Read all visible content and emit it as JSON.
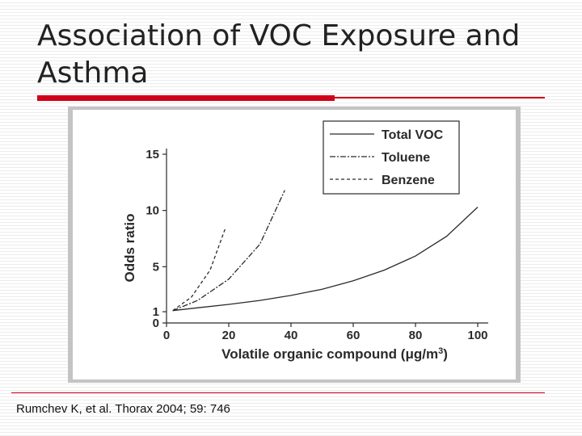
{
  "slide": {
    "title": "Association of VOC Exposure and Asthma",
    "citation": "Rumchev K, et al. Thorax 2004; 59: 746",
    "accent_color": "#d0021b"
  },
  "chart_data": {
    "type": "line",
    "xlabel": "Volatile organic compound (μg/m³)",
    "xlabel_main": "Volatile organic compound (",
    "xlabel_unit": "μg/m",
    "xlabel_sup": "3",
    "xlabel_close": ")",
    "ylabel": "Odds ratio",
    "xlim": [
      0,
      100
    ],
    "ylim": [
      0,
      15
    ],
    "x_ticks": [
      "0",
      "20",
      "40",
      "60",
      "80",
      "100"
    ],
    "y_ticks": [
      "0",
      "1",
      "5",
      "10",
      "15"
    ],
    "legend_position": "top-right",
    "grid": false,
    "series": [
      {
        "name": "Total VOC",
        "dash": "solid",
        "x": [
          2,
          10,
          20,
          30,
          40,
          50,
          60,
          70,
          80,
          90,
          100
        ],
        "y": [
          1.1,
          1.35,
          1.65,
          2.0,
          2.45,
          3.0,
          3.75,
          4.7,
          5.95,
          7.7,
          10.3
        ]
      },
      {
        "name": "Toluene",
        "dash": "dashdot",
        "x": [
          2,
          10,
          20,
          30,
          38
        ],
        "y": [
          1.1,
          2.0,
          3.9,
          7.0,
          11.8
        ]
      },
      {
        "name": "Benzene",
        "dash": "dashed",
        "x": [
          2,
          8,
          14,
          19
        ],
        "y": [
          1.1,
          2.3,
          4.7,
          8.5
        ]
      }
    ]
  }
}
